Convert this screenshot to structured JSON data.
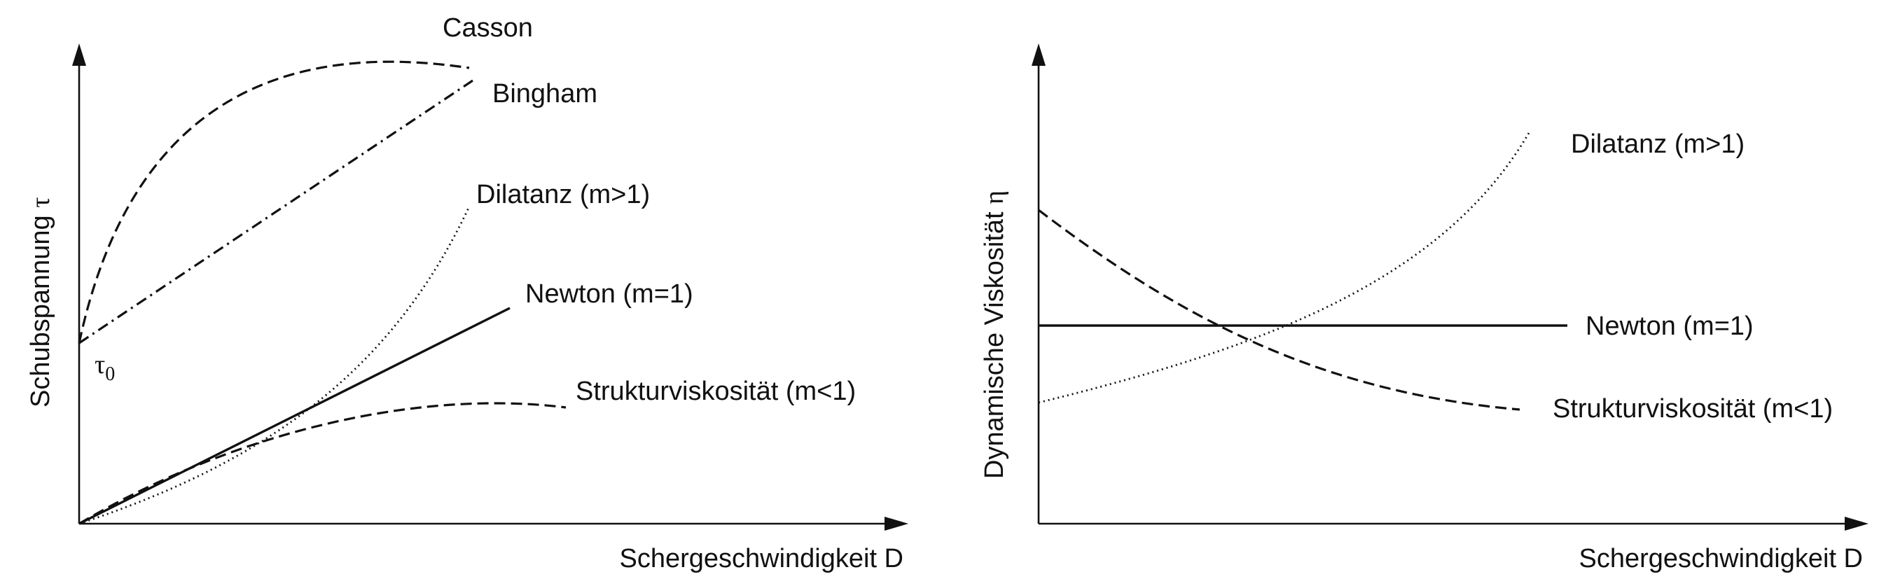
{
  "left_panel": {
    "y_axis_label": "Schubspannung",
    "y_axis_symbol": "τ",
    "x_axis_label": "Schergeschwindigkeit D",
    "yield_stress_symbol": "τ",
    "yield_stress_subscript": "0",
    "curves": {
      "casson": "Casson",
      "bingham": "Bingham",
      "dilatant": "Dilatanz (m>1)",
      "newton": "Newton (m=1)",
      "pseudoplastic": "Strukturviskosität (m<1)"
    }
  },
  "right_panel": {
    "y_axis_label": "Dynamische Viskosität",
    "y_axis_symbol": "η",
    "x_axis_label": "Schergeschwindigkeit D",
    "curves": {
      "dilatant": "Dilatanz (m>1)",
      "newton": "Newton (m=1)",
      "pseudoplastic": "Strukturviskosität (m<1)"
    }
  },
  "colors": {
    "ink": "#111111",
    "background": "#ffffff"
  }
}
